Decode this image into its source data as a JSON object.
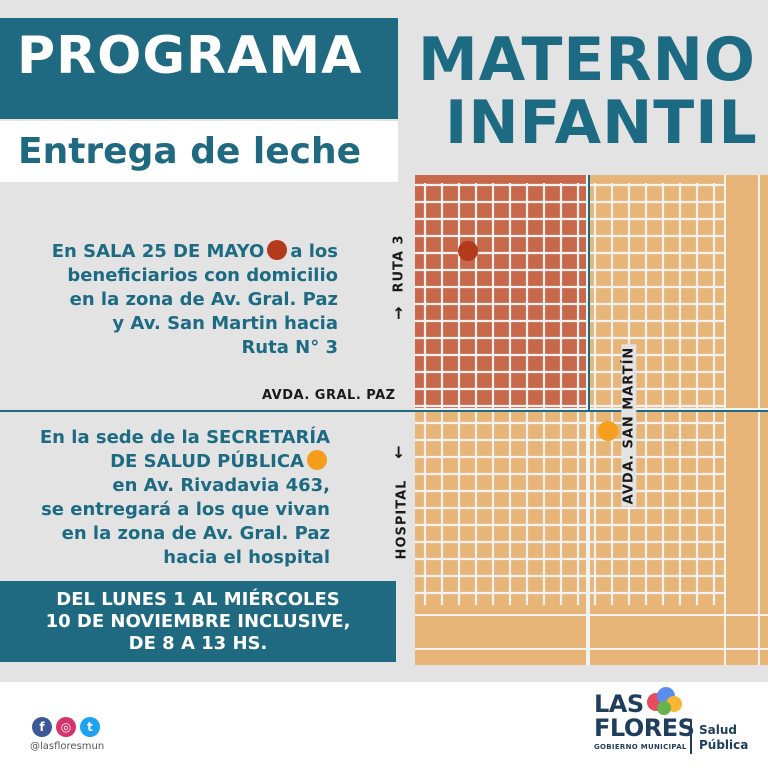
{
  "header": {
    "title_left": "PROGRAMA",
    "title_right_line1": "MATERNO",
    "title_right_line2": "INFANTIL",
    "subtitle": "Entrega de leche"
  },
  "info_sala": {
    "line1_pre": "En SALA 25 DE MAYO",
    "line1_post": "a los",
    "line2": "beneficiarios con domicilio",
    "line3": "en la zona de Av. Gral. Paz",
    "line4": "y Av. San Martin hacia",
    "line5": "Ruta N° 3",
    "dot_color": "#b33a1b"
  },
  "info_secretaria": {
    "line1": "En la sede de la SECRETARÍA",
    "line2": "DE SALUD PÚBLICA",
    "line3": "en Av. Rivadavia 463,",
    "line4": "se entregará a los que vivan",
    "line5": "en la zona de Av. Gral. Paz",
    "line6": "hacia el hospital",
    "dot_color": "#f59e1e"
  },
  "dates": {
    "line1": "DEL LUNES 1 AL MIÉRCOLES",
    "line2": "10 DE NOVIEMBRE INCLUSIVE,",
    "line3": "DE 8 A 13 HS."
  },
  "map": {
    "label_ruta": "RUTA 3",
    "label_hospital": "HOSPITAL",
    "label_gral_paz": "AVDA. GRAL. PAZ",
    "label_san_martin": "AVDA. SAN MARTÍN",
    "zone_sala_color": "#c8684a",
    "zone_rest_color": "#e8b578",
    "street_color": "#f2f2f2",
    "divider_color": "#206a81"
  },
  "footer": {
    "handle": "@lasfloresmun",
    "logo_line1": "LAS",
    "logo_line2": "FLORES",
    "logo_sub": "GOBIERNO MUNICIPAL",
    "dept_line1": "Salud",
    "dept_line2": "Pública",
    "social_icons": [
      "facebook-icon",
      "instagram-icon",
      "twitter-icon"
    ]
  },
  "colors": {
    "brand_teal": "#206a81",
    "background": "#e3e3e3"
  }
}
